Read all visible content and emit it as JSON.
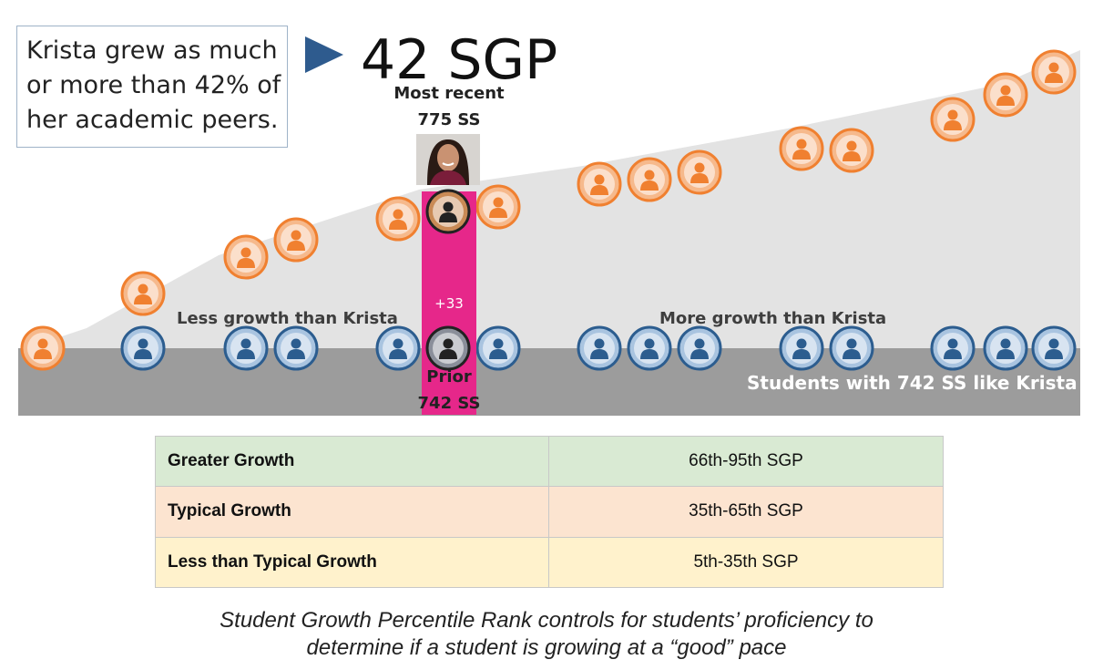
{
  "callout": {
    "lines": [
      "Krista grew as much",
      "or more than 42% of",
      "her academic peers."
    ]
  },
  "headline": "42 SGP",
  "most_recent": {
    "label": "Most recent",
    "score": "775 SS"
  },
  "growth_delta": "+33",
  "prior": {
    "label": "Prior",
    "score": "742 SS"
  },
  "less_growth_label": "Less growth than Krista",
  "more_growth_label": "More growth than Krista",
  "cohort_label": "Students with 742 SS like Krista",
  "colors": {
    "highlight_bar": "#e6278a",
    "orange_token": "#f08030",
    "blue_token": "#2c5d8f",
    "arrow": "#2e5b8e",
    "green_row": "#d9ead3",
    "peach_row": "#fce4d0",
    "yellow_row": "#fff2cc"
  },
  "growth_table": [
    {
      "category": "Greater Growth",
      "range": "66th-95th SGP",
      "color": "#d9ead3"
    },
    {
      "category": "Typical Growth",
      "range": "35th-65th SGP",
      "color": "#fce4d0"
    },
    {
      "category": "Less than Typical Growth",
      "range": "5th-35th SGP",
      "color": "#fff2cc"
    }
  ],
  "caption": [
    "Student Growth Percentile Rank controls for students’ proficiency to",
    "determine if a student is growing at a “good” pace"
  ]
}
